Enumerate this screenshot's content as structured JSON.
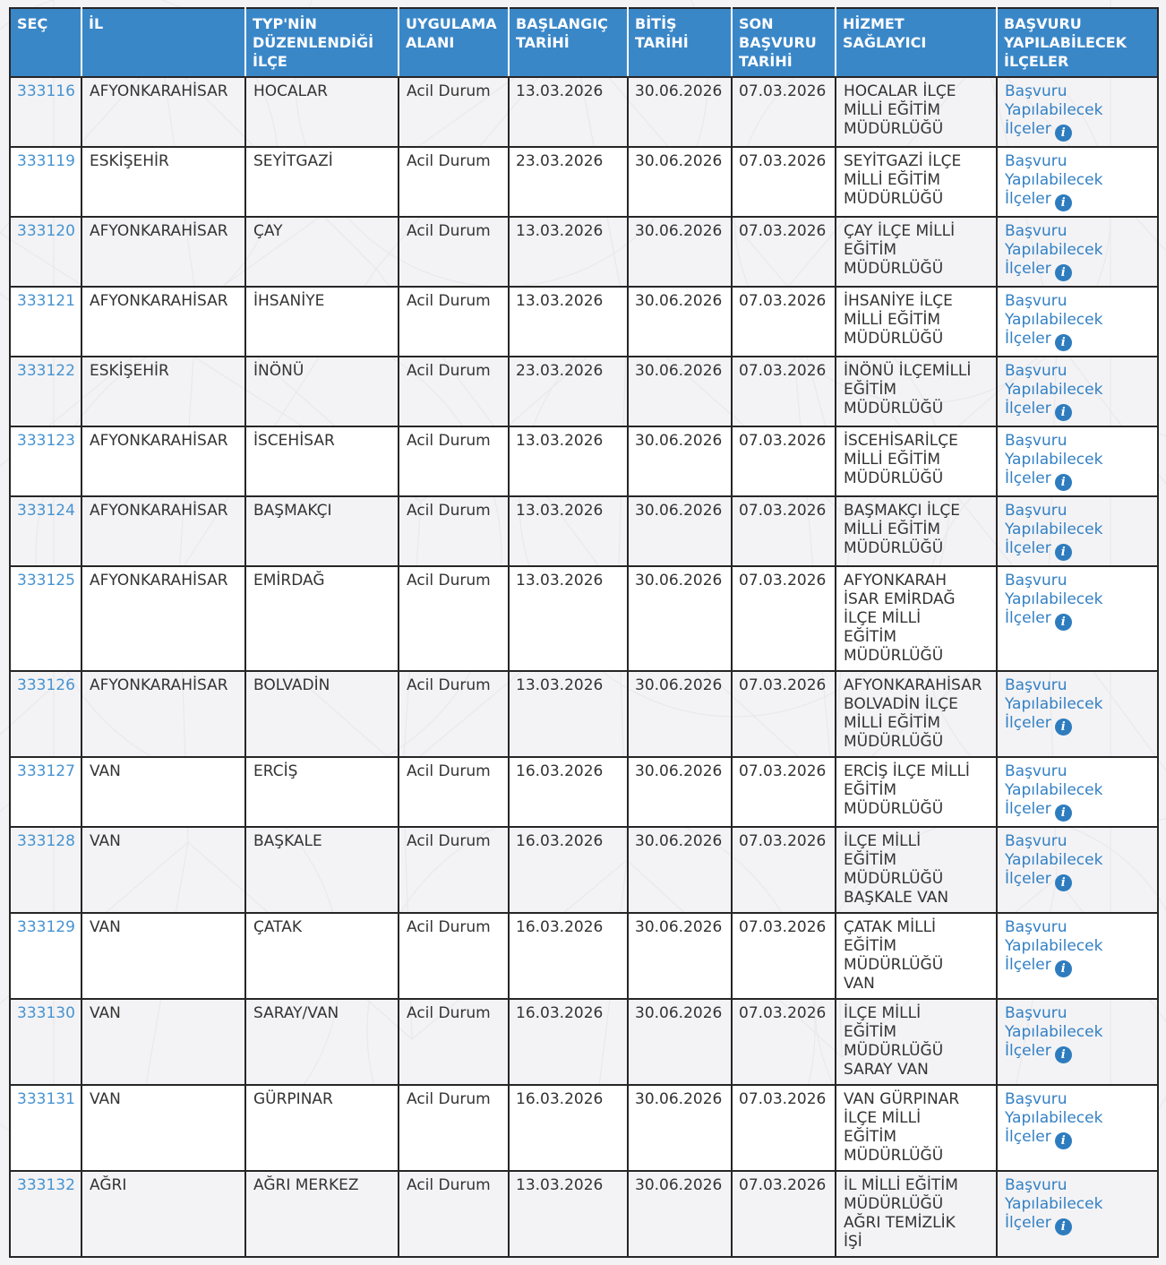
{
  "colors": {
    "header_bg": "#3a87c8",
    "id_link": "#4793d1",
    "link": "#3380c4",
    "info_icon_bg": "#2e7cbe",
    "border": "#262626",
    "text": "#333333",
    "page_bg": "#f3f3f5",
    "row_white": "#ffffff"
  },
  "table": {
    "link_label": "Başvuru Yapılabilecek İlçeler",
    "info_icon_glyph": "i",
    "columns": [
      {
        "key": "sec",
        "label": "SEÇ"
      },
      {
        "key": "il",
        "label": "İL"
      },
      {
        "key": "ilce",
        "label": "TYP'NİN DÜZENLENDİĞİ İLÇE"
      },
      {
        "key": "alan",
        "label": "UYGULAMA ALANI"
      },
      {
        "key": "baslangic",
        "label": "BAŞLANGIÇ TARİHİ"
      },
      {
        "key": "bitis",
        "label": "BİTİŞ TARİHİ"
      },
      {
        "key": "son",
        "label": "SON BAŞVURU TARİHİ"
      },
      {
        "key": "saglayici",
        "label": "HİZMET SAĞLAYICI"
      },
      {
        "key": "basvuru",
        "label": "BAŞVURU YAPILABİLECEK İLÇELER"
      }
    ],
    "rows": [
      {
        "id": "333116",
        "il": "AFYONKARAHİSAR",
        "ilce": "HOCALAR",
        "alan": "Acil Durum",
        "baslangic": "13.03.2026",
        "bitis": "30.06.2026",
        "son": "07.03.2026",
        "saglayici": "HOCALAR İLÇE MİLLİ EĞİTİM MÜDÜRLÜĞÜ"
      },
      {
        "id": "333119",
        "il": "ESKİŞEHİR",
        "ilce": "SEYİTGAZİ",
        "alan": "Acil Durum",
        "baslangic": "23.03.2026",
        "bitis": "30.06.2026",
        "son": "07.03.2026",
        "saglayici": "SEYİTGAZİ İLÇE MİLLİ EĞİTİM MÜDÜRLÜĞÜ"
      },
      {
        "id": "333120",
        "il": "AFYONKARAHİSAR",
        "ilce": "ÇAY",
        "alan": "Acil Durum",
        "baslangic": "13.03.2026",
        "bitis": "30.06.2026",
        "son": "07.03.2026",
        "saglayici": "ÇAY İLÇE MİLLİ EĞİTİM MÜDÜRLÜĞÜ"
      },
      {
        "id": "333121",
        "il": "AFYONKARAHİSAR",
        "ilce": "İHSANİYE",
        "alan": "Acil Durum",
        "baslangic": "13.03.2026",
        "bitis": "30.06.2026",
        "son": "07.03.2026",
        "saglayici": "İHSANİYE İLÇE MİLLİ EĞİTİM MÜDÜRLÜĞÜ"
      },
      {
        "id": "333122",
        "il": "ESKİŞEHİR",
        "ilce": "İNÖNÜ",
        "alan": "Acil Durum",
        "baslangic": "23.03.2026",
        "bitis": "30.06.2026",
        "son": "07.03.2026",
        "saglayici": "İNÖNÜ İLÇEMİLLİ EĞİTİM MÜDÜRLÜĞÜ"
      },
      {
        "id": "333123",
        "il": "AFYONKARAHİSAR",
        "ilce": "İSCEHİSAR",
        "alan": "Acil Durum",
        "baslangic": "13.03.2026",
        "bitis": "30.06.2026",
        "son": "07.03.2026",
        "saglayici": "İSCEHİSARİLÇE MİLLİ EĞİTİM MÜDÜRLÜĞÜ"
      },
      {
        "id": "333124",
        "il": "AFYONKARAHİSAR",
        "ilce": "BAŞMAKÇI",
        "alan": "Acil Durum",
        "baslangic": "13.03.2026",
        "bitis": "30.06.2026",
        "son": "07.03.2026",
        "saglayici": "BAŞMAKÇI İLÇE MİLLİ EĞİTİM MÜDÜRLÜĞÜ"
      },
      {
        "id": "333125",
        "il": "AFYONKARAHİSAR",
        "ilce": "EMİRDAĞ",
        "alan": "Acil Durum",
        "baslangic": "13.03.2026",
        "bitis": "30.06.2026",
        "son": "07.03.2026",
        "saglayici": "AFYONKARAH İSAR EMİRDAĞ İLÇE MİLLİ EĞİTİM MÜDÜRLÜĞÜ"
      },
      {
        "id": "333126",
        "il": "AFYONKARAHİSAR",
        "ilce": "BOLVADİN",
        "alan": "Acil Durum",
        "baslangic": "13.03.2026",
        "bitis": "30.06.2026",
        "son": "07.03.2026",
        "saglayici": "AFYONKARAHİSAR BOLVADİN İLÇE MİLLİ EĞİTİM MÜDÜRLÜĞÜ"
      },
      {
        "id": "333127",
        "il": "VAN",
        "ilce": "ERCİŞ",
        "alan": "Acil Durum",
        "baslangic": "16.03.2026",
        "bitis": "30.06.2026",
        "son": "07.03.2026",
        "saglayici": "ERCİŞ İLÇE MİLLİ EĞİTİM MÜDÜRLÜĞÜ"
      },
      {
        "id": "333128",
        "il": "VAN",
        "ilce": "BAŞKALE",
        "alan": "Acil Durum",
        "baslangic": "16.03.2026",
        "bitis": "30.06.2026",
        "son": "07.03.2026",
        "saglayici": "İLÇE MİLLİ EĞİTİM MÜDÜRLÜĞÜ BAŞKALE VAN"
      },
      {
        "id": "333129",
        "il": "VAN",
        "ilce": "ÇATAK",
        "alan": "Acil Durum",
        "baslangic": "16.03.2026",
        "bitis": "30.06.2026",
        "son": "07.03.2026",
        "saglayici": "ÇATAK MİLLİ EĞİTİM MÜDÜRLÜĞÜ VAN"
      },
      {
        "id": "333130",
        "il": "VAN",
        "ilce": "SARAY/VAN",
        "alan": "Acil Durum",
        "baslangic": "16.03.2026",
        "bitis": "30.06.2026",
        "son": "07.03.2026",
        "saglayici": "İLÇE MİLLİ EĞİTİM MÜDÜRLÜĞÜ SARAY VAN"
      },
      {
        "id": "333131",
        "il": "VAN",
        "ilce": "GÜRPINAR",
        "alan": "Acil Durum",
        "baslangic": "16.03.2026",
        "bitis": "30.06.2026",
        "son": "07.03.2026",
        "saglayici": "VAN GÜRPINAR İLÇE MİLLİ EĞİTİM MÜDÜRLÜĞÜ"
      },
      {
        "id": "333132",
        "il": "AĞRI",
        "ilce": "AĞRI MERKEZ",
        "alan": "Acil Durum",
        "baslangic": "13.03.2026",
        "bitis": "30.06.2026",
        "son": "07.03.2026",
        "saglayici": "İL MİLLİ EĞİTİM MÜDÜRLÜĞÜ AĞRI TEMİZLİK İŞİ"
      }
    ]
  }
}
